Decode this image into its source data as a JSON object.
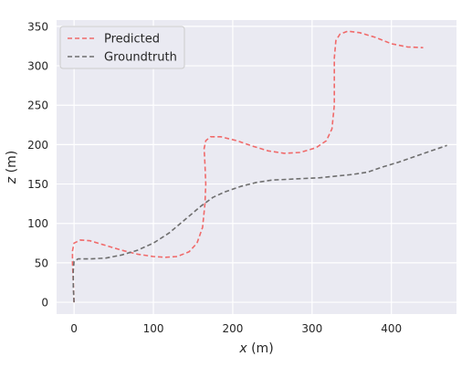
{
  "chart_data": {
    "type": "line",
    "xlabel_var": "x",
    "xlabel_unit": " (m)",
    "ylabel_var": "z",
    "ylabel_unit": " (m)",
    "xlim": [
      -22,
      482
    ],
    "ylim": [
      -15,
      358
    ],
    "xticks": [
      0,
      100,
      200,
      300,
      400
    ],
    "yticks": [
      0,
      50,
      100,
      150,
      200,
      250,
      300,
      350
    ],
    "grid": true,
    "legend_position": "top-left",
    "background": "#eaeaf2",
    "series": [
      {
        "name": "Predicted",
        "color": "#f06a6a",
        "style": "dashed",
        "points": [
          [
            0,
            0
          ],
          [
            -1,
            25
          ],
          [
            -2,
            50
          ],
          [
            -2,
            65
          ],
          [
            0,
            75
          ],
          [
            8,
            79
          ],
          [
            20,
            78
          ],
          [
            40,
            72
          ],
          [
            60,
            66
          ],
          [
            80,
            61
          ],
          [
            100,
            58
          ],
          [
            115,
            57
          ],
          [
            130,
            58
          ],
          [
            145,
            64
          ],
          [
            155,
            75
          ],
          [
            162,
            95
          ],
          [
            165,
            125
          ],
          [
            166,
            150
          ],
          [
            165,
            175
          ],
          [
            164,
            195
          ],
          [
            166,
            205
          ],
          [
            172,
            210
          ],
          [
            185,
            210
          ],
          [
            205,
            205
          ],
          [
            225,
            198
          ],
          [
            245,
            192
          ],
          [
            265,
            189
          ],
          [
            285,
            190
          ],
          [
            305,
            196
          ],
          [
            318,
            205
          ],
          [
            325,
            220
          ],
          [
            328,
            250
          ],
          [
            328,
            280
          ],
          [
            328,
            310
          ],
          [
            330,
            332
          ],
          [
            335,
            340
          ],
          [
            345,
            344
          ],
          [
            360,
            342
          ],
          [
            380,
            336
          ],
          [
            400,
            328
          ],
          [
            420,
            324
          ],
          [
            440,
            323
          ]
        ]
      },
      {
        "name": "Groundtruth",
        "color": "#6e6e6e",
        "style": "dashed",
        "points": [
          [
            0,
            0
          ],
          [
            -1,
            20
          ],
          [
            -1,
            40
          ],
          [
            0,
            52
          ],
          [
            5,
            55
          ],
          [
            20,
            55
          ],
          [
            40,
            56
          ],
          [
            60,
            60
          ],
          [
            80,
            66
          ],
          [
            100,
            75
          ],
          [
            120,
            88
          ],
          [
            140,
            105
          ],
          [
            160,
            122
          ],
          [
            175,
            133
          ],
          [
            190,
            140
          ],
          [
            210,
            147
          ],
          [
            230,
            152
          ],
          [
            250,
            155
          ],
          [
            270,
            156
          ],
          [
            290,
            157
          ],
          [
            310,
            158
          ],
          [
            330,
            160
          ],
          [
            350,
            162
          ],
          [
            370,
            165
          ],
          [
            390,
            172
          ],
          [
            410,
            178
          ],
          [
            430,
            185
          ],
          [
            450,
            192
          ],
          [
            470,
            199
          ]
        ]
      }
    ]
  }
}
